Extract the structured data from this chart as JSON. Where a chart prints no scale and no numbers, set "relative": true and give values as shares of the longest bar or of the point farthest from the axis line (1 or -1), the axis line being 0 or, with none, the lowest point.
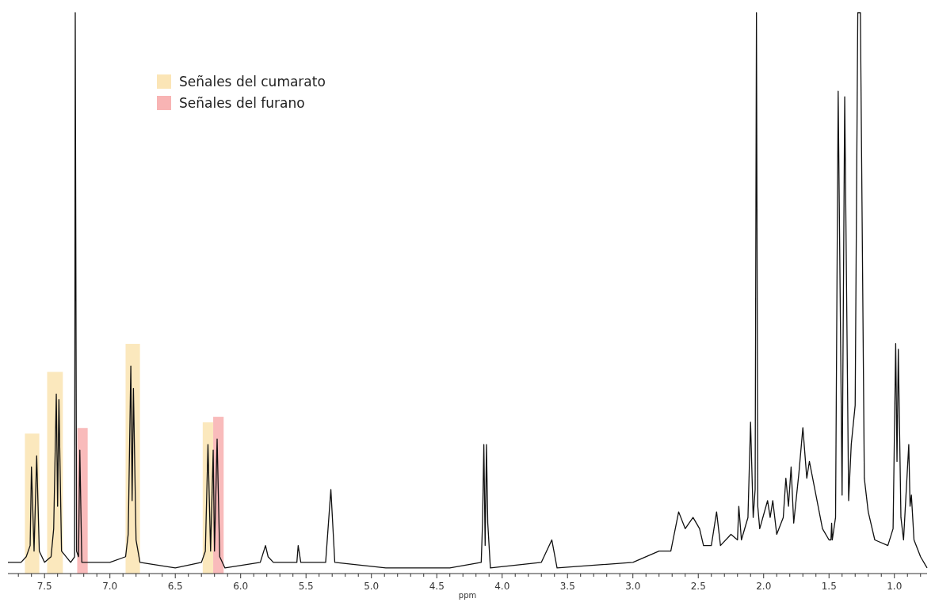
{
  "chart_data": {
    "type": "line",
    "relative": true,
    "xlabel": "ppm",
    "xlim": [
      7.78,
      0.75
    ],
    "xticks": [
      {
        "value": 7.7,
        "label": null
      },
      {
        "value": 7.6,
        "label": null
      },
      7.5,
      {
        "value": 7.4,
        "label": null
      },
      {
        "value": 7.3,
        "label": null
      },
      {
        "value": 7.2,
        "label": null
      },
      {
        "value": 7.1,
        "label": null
      },
      {
        "value": 7,
        "label": "7.0"
      },
      {
        "value": 6.9,
        "label": null
      },
      {
        "value": 6.8,
        "label": null
      },
      {
        "value": 6.7,
        "label": null
      },
      {
        "value": 6.6,
        "label": null
      },
      6.5,
      {
        "value": 6.4,
        "label": null
      },
      {
        "value": 6.3,
        "label": null
      },
      {
        "value": 6.2,
        "label": null
      },
      {
        "value": 6.1,
        "label": null
      },
      {
        "value": 6,
        "label": "6.0"
      },
      {
        "value": 5.9,
        "label": null
      },
      {
        "value": 5.8,
        "label": null
      },
      {
        "value": 5.7,
        "label": null
      },
      {
        "value": 5.6,
        "label": null
      },
      5.5,
      {
        "value": 5.4,
        "label": null
      },
      {
        "value": 5.3,
        "label": null
      },
      {
        "value": 5.2,
        "label": null
      },
      {
        "value": 5.1,
        "label": null
      },
      {
        "value": 5,
        "label": "5.0"
      },
      {
        "value": 4.9,
        "label": null
      },
      {
        "value": 4.8,
        "label": null
      },
      {
        "value": 4.7,
        "label": null
      },
      {
        "value": 4.6,
        "label": null
      },
      4.5,
      {
        "value": 4.4,
        "label": null
      },
      {
        "value": 4.3,
        "label": null
      },
      {
        "value": 4.2,
        "label": null
      },
      {
        "value": 4.1,
        "label": null
      },
      {
        "value": 4,
        "label": "4.0"
      },
      {
        "value": 3.9,
        "label": null
      },
      {
        "value": 3.8,
        "label": null
      },
      {
        "value": 3.7,
        "label": null
      },
      {
        "value": 3.6,
        "label": null
      },
      3.5,
      {
        "value": 3.4,
        "label": null
      },
      {
        "value": 3.3,
        "label": null
      },
      {
        "value": 3.2,
        "label": null
      },
      {
        "value": 3.1,
        "label": null
      },
      {
        "value": 3,
        "label": "3.0"
      },
      {
        "value": 2.9,
        "label": null
      },
      {
        "value": 2.8,
        "label": null
      },
      {
        "value": 2.7,
        "label": null
      },
      {
        "value": 2.6,
        "label": null
      },
      2.5,
      {
        "value": 2.4,
        "label": null
      },
      {
        "value": 2.3,
        "label": null
      },
      {
        "value": 2.2,
        "label": null
      },
      {
        "value": 2.1,
        "label": null
      },
      {
        "value": 2,
        "label": "2.0"
      },
      {
        "value": 1.9,
        "label": null
      },
      {
        "value": 1.8,
        "label": null
      },
      {
        "value": 1.7,
        "label": null
      },
      {
        "value": 1.6,
        "label": null
      },
      1.5,
      {
        "value": 1.4,
        "label": null
      },
      {
        "value": 1.3,
        "label": null
      },
      {
        "value": 1.2,
        "label": null
      },
      {
        "value": 1.1,
        "label": null
      },
      {
        "value": 1,
        "label": "1.0"
      },
      {
        "value": 0.9,
        "label": null
      },
      {
        "value": 0.8,
        "label": null
      }
    ],
    "legend": "top left",
    "bands": [
      {
        "axis": "x",
        "from": 7.65,
        "to": 7.54,
        "label": "Señales del cumarato",
        "color": "#fbe5b6"
      },
      {
        "axis": "x",
        "from": 7.48,
        "to": 7.36,
        "color": "#fbe5b6"
      },
      {
        "axis": "x",
        "from": 7.25,
        "to": 7.17,
        "label": "Señales del furano",
        "color": "#f8b4b4"
      },
      {
        "axis": "x",
        "from": 6.88,
        "to": 6.77,
        "color": "#fbe5b6"
      },
      {
        "axis": "x",
        "from": 6.29,
        "to": 6.21,
        "color": "#fbe5b6"
      },
      {
        "axis": "x",
        "from": 6.21,
        "to": 6.13,
        "color": "#f8b4b4"
      }
    ],
    "series": [
      {
        "color": "#111111",
        "x": [
          7.78,
          7.68,
          7.64,
          7.61,
          7.6,
          7.58,
          7.56,
          7.54,
          7.5,
          7.45,
          7.43,
          7.41,
          7.4,
          7.39,
          7.37,
          7.3,
          7.27,
          7.265,
          7.255,
          7.24,
          7.23,
          7.215,
          7,
          6.88,
          6.86,
          6.84,
          6.83,
          6.82,
          6.8,
          6.77,
          6.5,
          6.3,
          6.27,
          6.25,
          6.23,
          6.21,
          6.2,
          6.18,
          6.16,
          6.12,
          5.85,
          5.81,
          5.79,
          5.75,
          5.57,
          5.56,
          5.54,
          5.35,
          5.31,
          5.28,
          4.89,
          4.4,
          4.16,
          4.15,
          4.14,
          4.13,
          4.12,
          4.11,
          4.09,
          3.7,
          3.62,
          3.58,
          3,
          2.8,
          2.71,
          2.65,
          2.6,
          2.54,
          2.49,
          2.46,
          2.4,
          2.36,
          2.33,
          2.25,
          2.2,
          2.19,
          2.17,
          2.12,
          2.1,
          2.08,
          2.065,
          2.055,
          2.045,
          2.03,
          1.97,
          1.95,
          1.93,
          1.9,
          1.85,
          1.83,
          1.81,
          1.79,
          1.77,
          1.73,
          1.7,
          1.67,
          1.65,
          1.6,
          1.55,
          1.5,
          1.485,
          1.48,
          1.475,
          1.45,
          1.43,
          1.4,
          1.38,
          1.35,
          1.33,
          1.3,
          1.28,
          1.26,
          1.23,
          1.2,
          1.15,
          1.05,
          1.01,
          0.99,
          0.98,
          0.97,
          0.95,
          0.93,
          0.89,
          0.88,
          0.87,
          0.85,
          0.8,
          0.75
        ],
        "values": [
          0.02,
          0.02,
          0.03,
          0.05,
          0.19,
          0.04,
          0.21,
          0.04,
          0.02,
          0.03,
          0.08,
          0.32,
          0.12,
          0.31,
          0.04,
          0.02,
          0.03,
          1,
          0.04,
          0.03,
          0.22,
          0.02,
          0.02,
          0.03,
          0.07,
          0.37,
          0.13,
          0.33,
          0.06,
          0.02,
          0.01,
          0.02,
          0.04,
          0.23,
          0.04,
          0.22,
          0.04,
          0.24,
          0.03,
          0.01,
          0.02,
          0.05,
          0.03,
          0.02,
          0.02,
          0.05,
          0.02,
          0.02,
          0.15,
          0.02,
          0.01,
          0.01,
          0.02,
          0.09,
          0.23,
          0.05,
          0.23,
          0.09,
          0.01,
          0.02,
          0.06,
          0.01,
          0.02,
          0.04,
          0.04,
          0.11,
          0.08,
          0.1,
          0.08,
          0.05,
          0.05,
          0.11,
          0.05,
          0.07,
          0.06,
          0.12,
          0.06,
          0.1,
          0.27,
          0.1,
          0.15,
          1,
          0.12,
          0.08,
          0.13,
          0.1,
          0.13,
          0.07,
          0.1,
          0.17,
          0.12,
          0.19,
          0.09,
          0.18,
          0.26,
          0.17,
          0.2,
          0.14,
          0.08,
          0.06,
          0.06,
          0.09,
          0.06,
          0.1,
          0.86,
          0.14,
          0.85,
          0.13,
          0.23,
          0.3,
          1,
          1,
          0.17,
          0.11,
          0.06,
          0.05,
          0.08,
          0.41,
          0.2,
          0.4,
          0.1,
          0.06,
          0.23,
          0.12,
          0.14,
          0.06,
          0.03,
          0.01
        ]
      }
    ]
  }
}
